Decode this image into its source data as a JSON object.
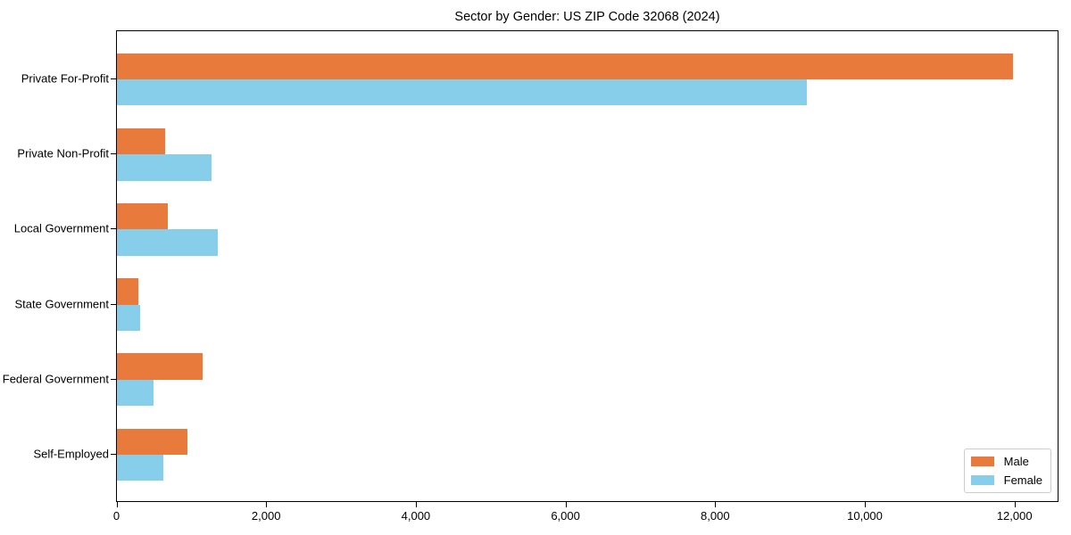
{
  "chart_data": {
    "type": "bar",
    "orientation": "horizontal",
    "title": "Sector by Gender: US ZIP Code 32068 (2024)",
    "categories": [
      "Private For-Profit",
      "Private Non-Profit",
      "Local Government",
      "State Government",
      "Federal Government",
      "Self-Employed"
    ],
    "series": [
      {
        "name": "Male",
        "color": "#e87a3c",
        "values": [
          11970,
          640,
          675,
          290,
          1140,
          945
        ]
      },
      {
        "name": "Female",
        "color": "#87ceeb",
        "values": [
          9220,
          1270,
          1350,
          310,
          490,
          620
        ]
      }
    ],
    "xlabel": "",
    "ylabel": "",
    "xlim": [
      0,
      12570
    ],
    "x_ticks": [
      {
        "value": 0,
        "label": "0"
      },
      {
        "value": 2000,
        "label": "2,000"
      },
      {
        "value": 4000,
        "label": "4,000"
      },
      {
        "value": 6000,
        "label": "6,000"
      },
      {
        "value": 8000,
        "label": "8,000"
      },
      {
        "value": 10000,
        "label": "10,000"
      },
      {
        "value": 12000,
        "label": "12,000"
      }
    ],
    "grid": false,
    "legend_position": "lower right",
    "axis_color": "#000000",
    "background_color": "#ffffff"
  }
}
